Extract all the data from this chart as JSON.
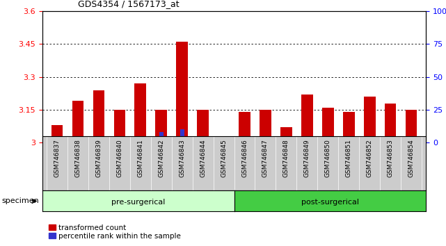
{
  "title": "GDS4354 / 1567173_at",
  "samples": [
    "GSM746837",
    "GSM746838",
    "GSM746839",
    "GSM746840",
    "GSM746841",
    "GSM746842",
    "GSM746843",
    "GSM746844",
    "GSM746845",
    "GSM746846",
    "GSM746847",
    "GSM746848",
    "GSM746849",
    "GSM746850",
    "GSM746851",
    "GSM746852",
    "GSM746853",
    "GSM746854"
  ],
  "red_values": [
    3.08,
    3.19,
    3.24,
    3.15,
    3.27,
    3.15,
    3.46,
    3.15,
    3.0,
    3.14,
    3.15,
    3.07,
    3.22,
    3.16,
    3.14,
    3.21,
    3.18,
    3.15
  ],
  "blue_values": [
    2,
    5,
    5,
    3,
    5,
    8,
    10,
    2,
    3,
    2,
    2,
    3,
    5,
    4,
    3,
    3,
    3,
    2
  ],
  "ylim_left": [
    3.0,
    3.6
  ],
  "ylim_right": [
    0,
    100
  ],
  "yticks_left": [
    3.0,
    3.15,
    3.3,
    3.45,
    3.6
  ],
  "yticks_right": [
    0,
    25,
    50,
    75,
    100
  ],
  "ytick_labels_left": [
    "3",
    "3.15",
    "3.3",
    "3.45",
    "3.6"
  ],
  "ytick_labels_right": [
    "0",
    "25",
    "50",
    "75",
    "100%"
  ],
  "grid_lines": [
    3.15,
    3.3,
    3.45
  ],
  "pre_surgical_count": 9,
  "post_surgical_count": 9,
  "pre_surgical_label": "pre-surgerical",
  "post_surgical_label": "post-surgerical",
  "specimen_label": "specimen",
  "legend_red": "transformed count",
  "legend_blue": "percentile rank within the sample",
  "bar_color_red": "#cc0000",
  "bar_color_blue": "#3333cc",
  "pre_bg_color": "#ccffcc",
  "post_bg_color": "#44cc44",
  "tick_area_bg": "#cccccc",
  "bar_width": 0.55
}
